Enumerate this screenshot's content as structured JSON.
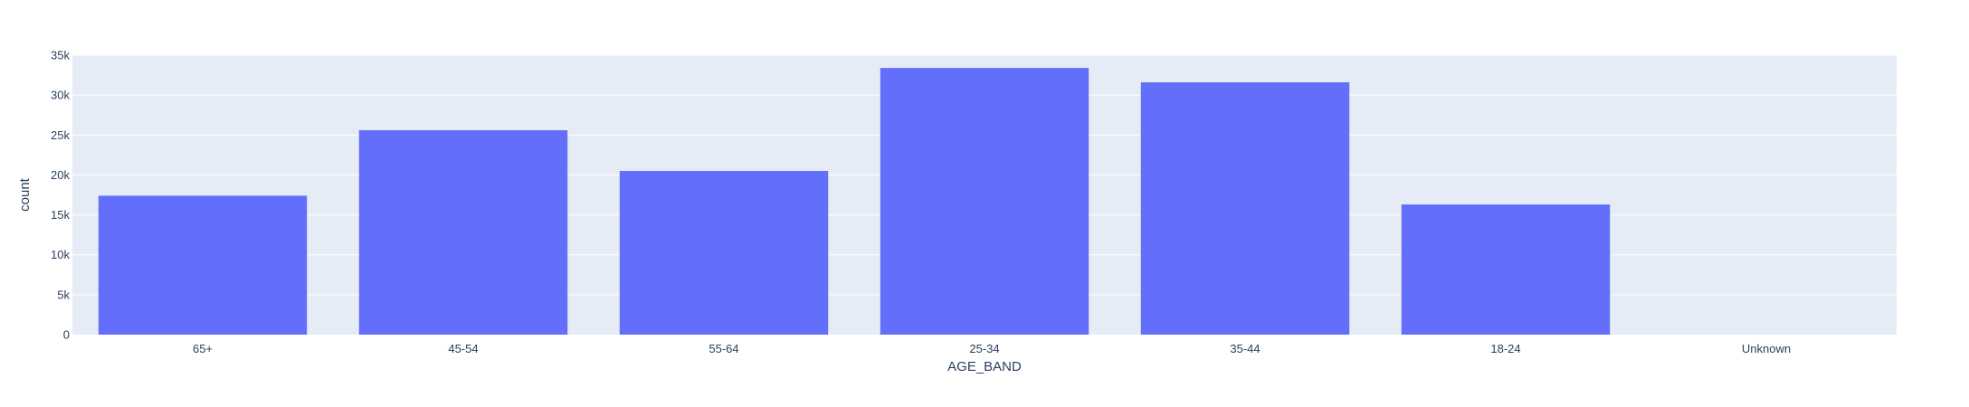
{
  "chart_data": {
    "type": "bar",
    "categories": [
      "65+",
      "45-54",
      "55-64",
      "25-34",
      "35-44",
      "18-24",
      "Unknown"
    ],
    "values": [
      17400,
      25600,
      20500,
      33400,
      31600,
      16300,
      0
    ],
    "xlabel": "AGE_BAND",
    "ylabel": "count",
    "ylim": [
      0,
      35000
    ],
    "yticks": [
      0,
      5000,
      10000,
      15000,
      20000,
      25000,
      30000,
      35000
    ],
    "ytick_labels": [
      "0",
      "5k",
      "10k",
      "15k",
      "20k",
      "25k",
      "30k",
      "35k"
    ],
    "grid": true,
    "colors": {
      "bar": "#636efa",
      "plot_bg": "#e5ecf6",
      "grid": "#ffffff",
      "text": "#2a3f5f"
    }
  }
}
